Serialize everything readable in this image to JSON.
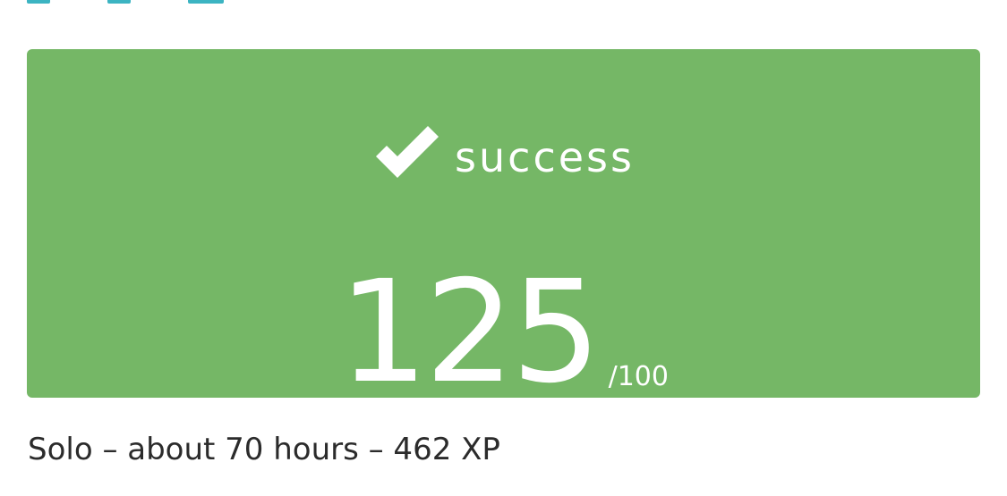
{
  "colors": {
    "card_background": "#75b766",
    "text_on_card": "#ffffff",
    "meta_text": "#2b2b2b",
    "top_accent": "#3cb4c2"
  },
  "result": {
    "status_icon": "checkmark-icon",
    "status_label": "success",
    "score": "125",
    "score_max": "/100"
  },
  "meta": {
    "summary": "Solo – about 70 hours – 462 XP"
  }
}
